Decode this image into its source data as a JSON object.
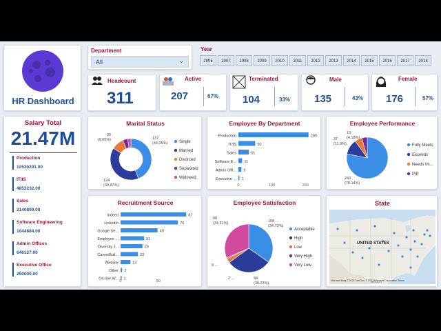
{
  "app": {
    "title": "HR Dashboard"
  },
  "filters": {
    "department_label": "Department",
    "department_value": "All",
    "year_label": "Year",
    "years": [
      "2006",
      "2007",
      "2008",
      "2009",
      "2010",
      "2011",
      "2012",
      "2013",
      "2014",
      "2015",
      "2016",
      "2017",
      "2018"
    ]
  },
  "kpis": {
    "headcount": {
      "label": "Headcount",
      "value": "311"
    },
    "active": {
      "label": "Active",
      "value": "207",
      "pct": "67%"
    },
    "terminated": {
      "label": "Terminated",
      "value": "104",
      "pct": "33%"
    },
    "male": {
      "label": "Male",
      "value": "135",
      "pct": "43%"
    },
    "female": {
      "label": "Female",
      "value": "176",
      "pct": "57%"
    }
  },
  "salary": {
    "title": "Salary Total",
    "total": "21.47M",
    "items": [
      {
        "name": "Production",
        "value": "12530291.00"
      },
      {
        "name": "IT/IS",
        "value": "4853232.00"
      },
      {
        "name": "Sales",
        "value": "2140899.00"
      },
      {
        "name": "Software Engineering",
        "value": "1044884.00"
      },
      {
        "name": "Admin Offices",
        "value": "646127.00"
      },
      {
        "name": "Executive Office",
        "value": "250000.00"
      }
    ]
  },
  "map": {
    "title": "State",
    "country_label": "UNITED STATES",
    "mexico_label": "MEXICO",
    "attribution": "Microsoft Bing  © 2023 TomTom, © 2023 Microsoft Corporation  Terms"
  },
  "colors": {
    "blue": "#3b8ee6",
    "navy": "#2c3c9c",
    "orange": "#e8793a",
    "purple": "#6d2a9b",
    "pink": "#d24aa0",
    "accent_red": "#a3123a",
    "accent_navy": "#1f4e97"
  },
  "chart_data": [
    {
      "type": "pie",
      "variant": "donut",
      "title": "Marital Status",
      "legend_position": "right",
      "slices": [
        {
          "name": "Single",
          "value": 137,
          "label": "137",
          "pct_label": "(44.05%)"
        },
        {
          "name": "Married",
          "value": 124,
          "label": "124",
          "pct_label": "(39.87%)"
        },
        {
          "name": "Divorced",
          "value": 30,
          "label": "30",
          "pct_label": "(9.65%)"
        },
        {
          "name": "Separated",
          "value": 12,
          "label": "",
          "pct_label": ""
        },
        {
          "name": "Widowed",
          "value": 8,
          "label": "",
          "pct_label": ""
        }
      ]
    },
    {
      "type": "bar",
      "orientation": "horizontal",
      "title": "Employee By Department",
      "categories": [
        "Production",
        "IT/IS",
        "Sales",
        "Software E...",
        "Admin Offi...",
        "Executive ..."
      ],
      "values": [
        209,
        50,
        31,
        11,
        9,
        1
      ],
      "xlim": [
        0,
        230
      ],
      "xticks": [
        "0",
        "100",
        "200"
      ],
      "xtick_values": [
        0,
        100,
        200
      ]
    },
    {
      "type": "pie",
      "title": "Employee Performance",
      "legend_position": "right",
      "slices": [
        {
          "name": "Fully Meets",
          "value": 243,
          "label": "243",
          "pct_label": "(78.14%)"
        },
        {
          "name": "Exceeds",
          "value": 37,
          "label": "37",
          "pct_label": "(11.9%)"
        },
        {
          "name": "Needs Im...",
          "value": 18,
          "label": "",
          "pct_label": ""
        },
        {
          "name": "PIP",
          "value": 13,
          "label": "13",
          "pct_label": "(4.18%)"
        }
      ]
    },
    {
      "type": "bar",
      "orientation": "horizontal",
      "title": "Recruitment Source",
      "categories": [
        "Indeed",
        "LinkedIn",
        "Google Se...",
        "Employee ...",
        "Diversity J...",
        "CareerBuil...",
        "Website",
        "Other",
        "On-line W..."
      ],
      "values": [
        87,
        76,
        49,
        31,
        29,
        23,
        13,
        2,
        1
      ],
      "xlim": [
        0,
        95
      ],
      "xticks": [
        "0",
        "50"
      ],
      "xtick_values": [
        0,
        50
      ]
    },
    {
      "type": "pie",
      "title": "Employee Satisfaction",
      "legend_position": "right",
      "slices": [
        {
          "name": "Acceptable",
          "value": 108,
          "label": "108",
          "pct_label": "(34.73%)"
        },
        {
          "name": "High",
          "value": 94,
          "label": "94",
          "pct_label": "(30.23%)"
        },
        {
          "name": "Low",
          "value": 9,
          "label": "9 ...",
          "pct_label": ""
        },
        {
          "name": "Very High",
          "value": 2,
          "label": "2 ...",
          "pct_label": ""
        },
        {
          "name": "Very Low",
          "value": 98,
          "label": "98",
          "pct_label": "(31.51%)"
        }
      ]
    }
  ]
}
